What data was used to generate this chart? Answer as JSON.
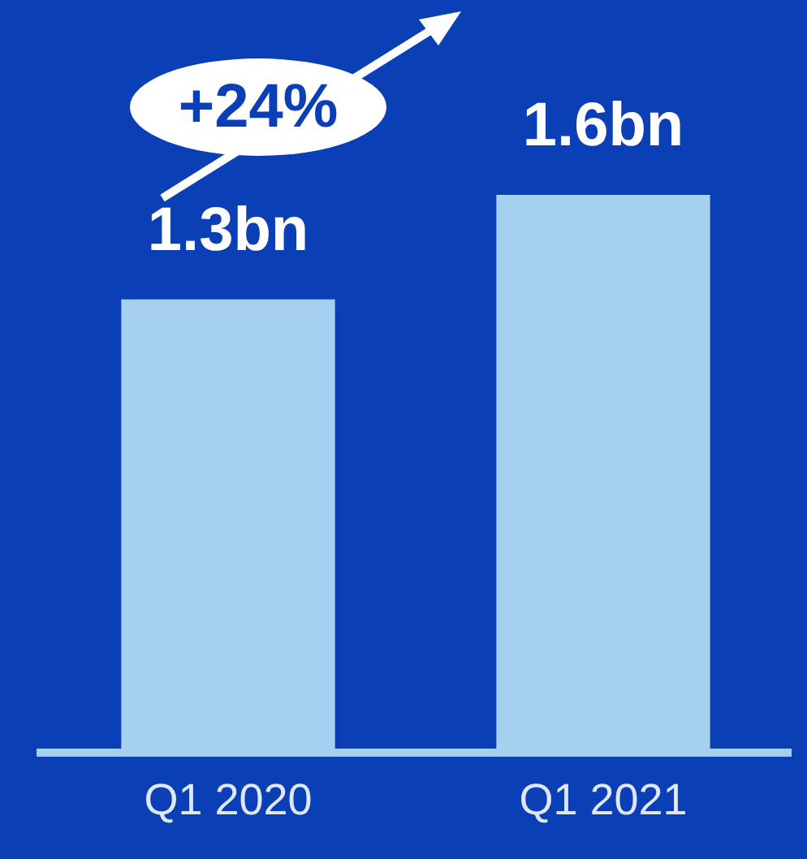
{
  "chart_data": {
    "type": "bar",
    "categories": [
      "Q1 2020",
      "Q1 2021"
    ],
    "values": [
      1.3,
      1.6
    ],
    "value_labels": [
      "1.3bn",
      "1.6bn"
    ],
    "color": "#a5d0f0",
    "annotations": [
      "+24%"
    ],
    "legend": false
  }
}
